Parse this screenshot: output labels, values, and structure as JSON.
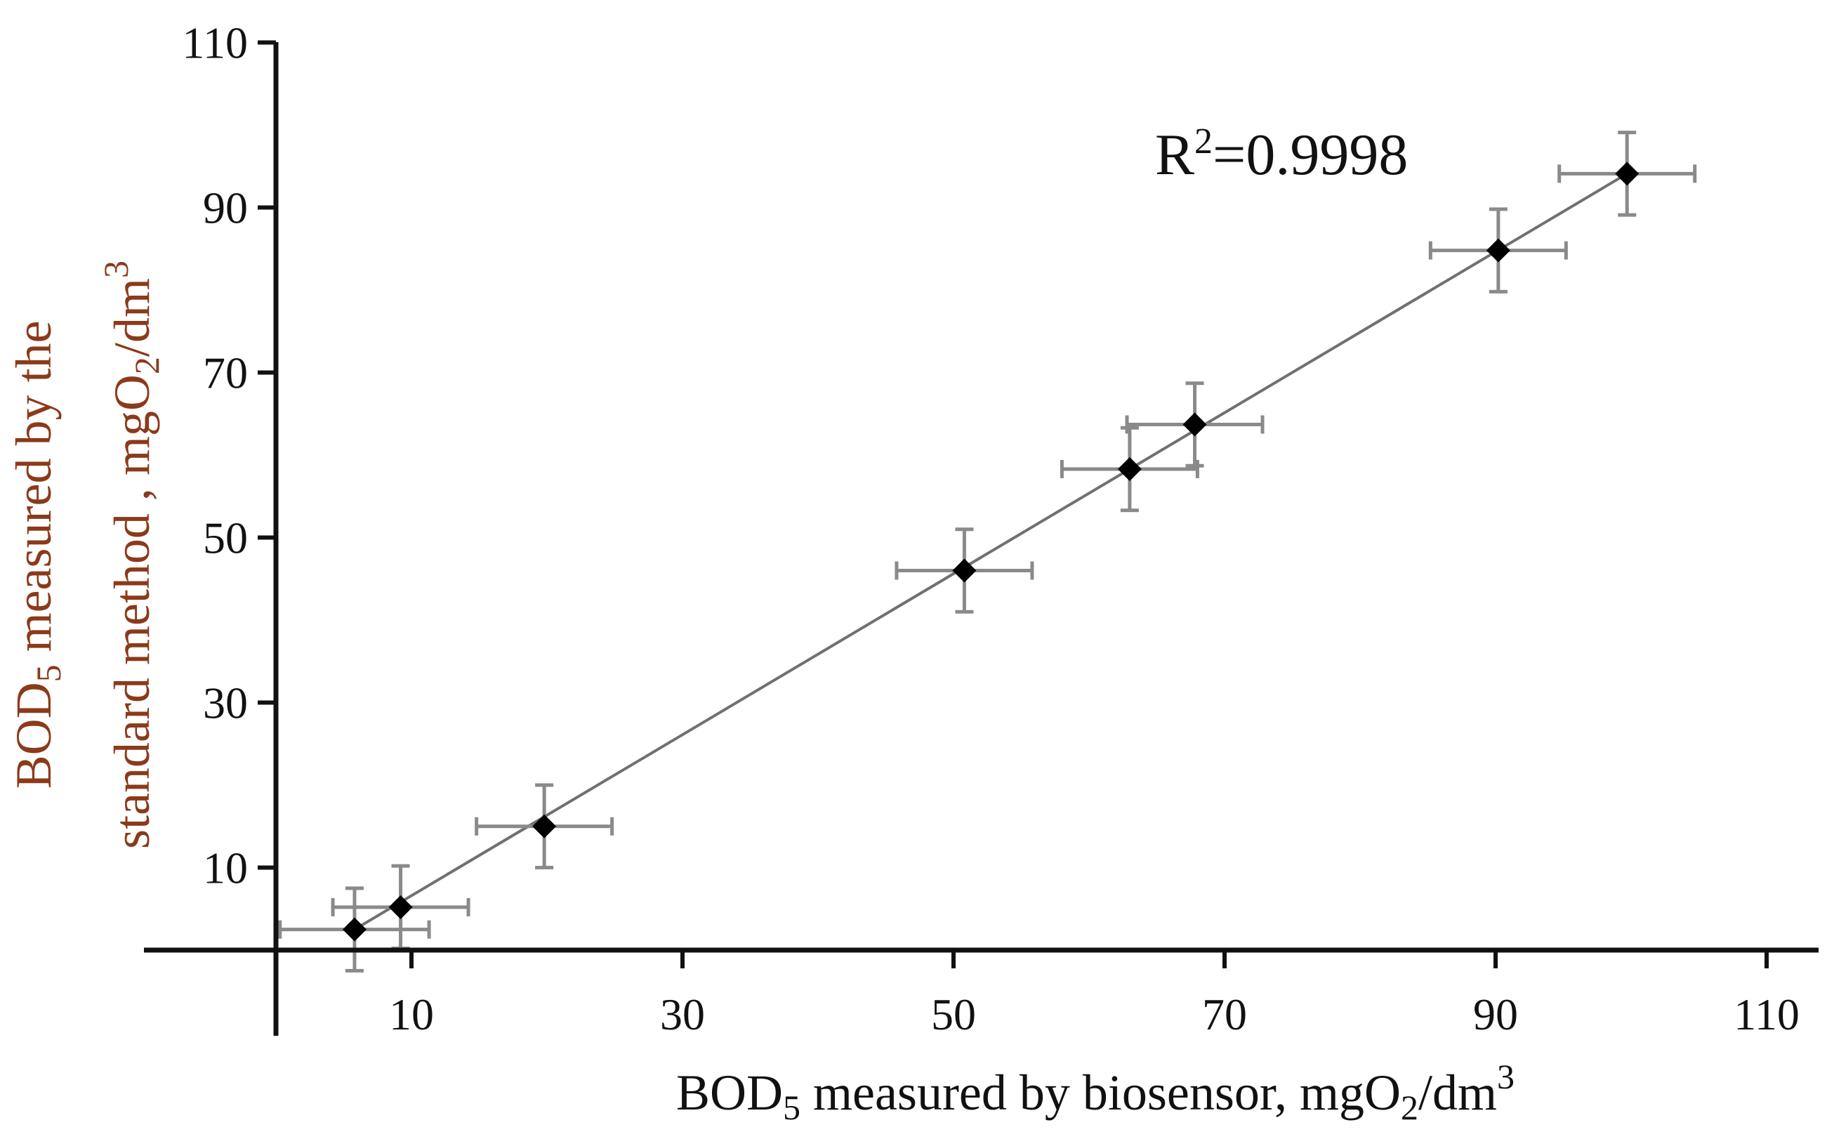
{
  "chart_data": {
    "type": "scatter",
    "title": "",
    "xlabel": {
      "prefix": "BOD",
      "sub": "5",
      "middle": " measured by biosensor, mgO",
      "sub2": "2",
      "suffix": "/dm",
      "sup": "3"
    },
    "ylabel_line1": {
      "prefix": "BOD",
      "sub": "5",
      "suffix": " measured by the"
    },
    "ylabel_line2": {
      "prefix": "standard method , mgO",
      "sub": "2",
      "suffix": "/dm",
      "sup": "3"
    },
    "xlim": [
      0,
      110
    ],
    "ylim": [
      0,
      110
    ],
    "x_ticks": [
      10,
      30,
      50,
      70,
      90,
      110
    ],
    "y_ticks": [
      10,
      30,
      50,
      70,
      90,
      110
    ],
    "x_tick_labels": [
      "10",
      "30",
      "50",
      "70",
      "90",
      "110"
    ],
    "y_tick_labels": [
      "10",
      "30",
      "50",
      "70",
      "90",
      "110"
    ],
    "grid": false,
    "series": [
      {
        "name": "BOD5",
        "points": [
          {
            "x": 5.8,
            "y": 2.5,
            "xerr": 5.5,
            "yerr": 5
          },
          {
            "x": 9.2,
            "y": 5.2,
            "xerr": 5,
            "yerr": 5
          },
          {
            "x": 19.8,
            "y": 15,
            "xerr": 5,
            "yerr": 5
          },
          {
            "x": 50.8,
            "y": 46,
            "xerr": 5,
            "yerr": 5
          },
          {
            "x": 63,
            "y": 58.3,
            "xerr": 5,
            "yerr": 5
          },
          {
            "x": 67.8,
            "y": 63.7,
            "xerr": 5,
            "yerr": 5
          },
          {
            "x": 90.2,
            "y": 84.8,
            "xerr": 5,
            "yerr": 5
          },
          {
            "x": 99.7,
            "y": 94.1,
            "xerr": 5,
            "yerr": 5
          }
        ]
      }
    ],
    "fit_line": {
      "from": [
        5.8,
        2.5
      ],
      "to": [
        99.7,
        94.1
      ]
    },
    "annotation": {
      "prefix": "R",
      "sup": "2",
      "suffix": "=0.9998"
    }
  },
  "colors": {
    "axis": "#111111",
    "point": "#000000",
    "fit_line": "#707070",
    "error_bar": "#8a8a8a",
    "ylabel": "#8b3a1a",
    "xlabel": "#111111"
  }
}
